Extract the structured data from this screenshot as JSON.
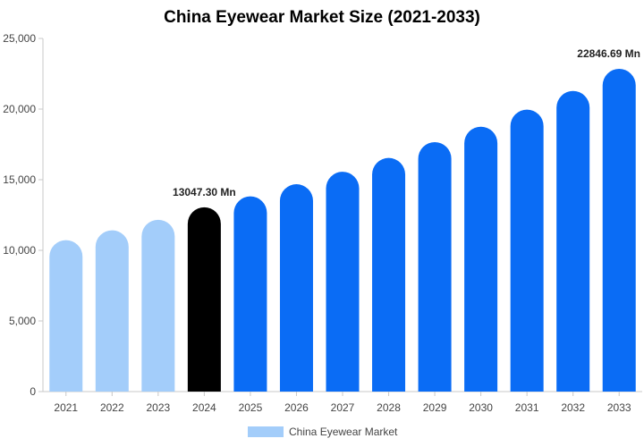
{
  "chart_data": {
    "type": "bar",
    "title": "China Eyewear Market Size (2021-2033)",
    "categories": [
      "2021",
      "2022",
      "2023",
      "2024",
      "2025",
      "2026",
      "2027",
      "2028",
      "2029",
      "2030",
      "2031",
      "2032",
      "2033"
    ],
    "series": [
      {
        "name": "China Eyewear Market",
        "values": [
          10720,
          11420,
          12160,
          13047.3,
          13820,
          14680,
          15560,
          16540,
          17660,
          18750,
          19960,
          21280,
          22846.69
        ]
      }
    ],
    "ylim": [
      0,
      25000
    ],
    "yticks": [
      0,
      5000,
      10000,
      15000,
      20000,
      25000
    ],
    "ytick_labels": [
      "0",
      "5,000",
      "10,000",
      "15,000",
      "20,000",
      "25,000"
    ],
    "data_labels": [
      {
        "category": "2024",
        "text": "13047.30 Mn"
      },
      {
        "category": "2033",
        "text": "22846.69 Mn"
      }
    ],
    "bar_colors": {
      "historical": "#a3cdfa",
      "current": "#000000",
      "forecast": "#0a6cf5"
    },
    "bar_color_by_category": [
      "historical",
      "historical",
      "historical",
      "current",
      "forecast",
      "forecast",
      "forecast",
      "forecast",
      "forecast",
      "forecast",
      "forecast",
      "forecast",
      "forecast"
    ],
    "legend": {
      "label": "China Eyewear Market",
      "color": "#a3cdfa",
      "position": "bottom"
    },
    "grid": false
  }
}
